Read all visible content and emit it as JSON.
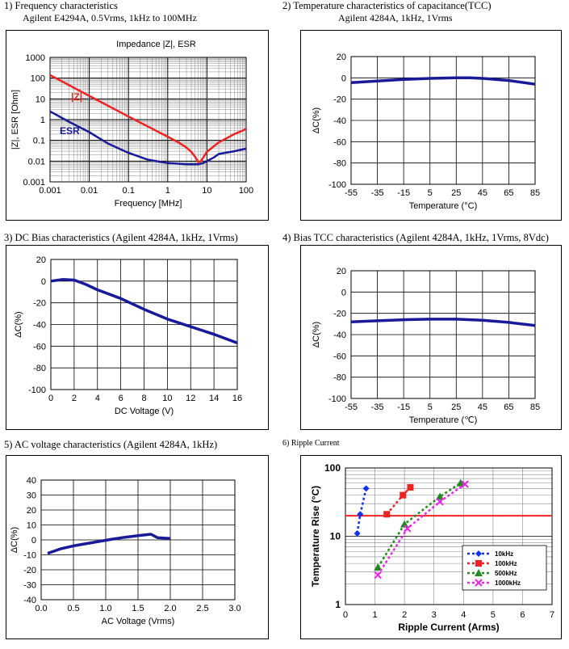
{
  "headers": {
    "p1_title": "1) Frequency characteristics",
    "p1_sub": "Agilent E4294A, 0.5Vrms, 1kHz to 100MHz",
    "p2_title": "2) Temperature characteristics of capacitance(TCC)",
    "p2_sub": "Agilent 4284A, 1kHz, 1Vrms",
    "p3_title": "3) DC Bias characteristics (Agilent 4284A, 1kHz, 1Vrms)",
    "p4_title": "4) Bias TCC characteristics (Agilent 4284A, 1kHz, 1Vrms, 8Vdc)",
    "p5_title": "5) AC voltage characteristics (Agilent 4284A, 1kHz)",
    "p6_title": "6) Ripple Current"
  },
  "colors": {
    "red": "#ee2222",
    "blue": "#1a1a99",
    "axis": "#000000",
    "grid": "#888888",
    "green": "#228822",
    "magenta": "#ee22ee",
    "brightblue": "#1133ee"
  },
  "chart_data": [
    {
      "id": "freq",
      "type": "line",
      "title": "Impedance |Z|,  ESR",
      "xlabel": "Frequency [MHz]",
      "ylabel": "|Z|, ESR [Ohm]",
      "xscale": "log",
      "yscale": "log",
      "xlim": [
        0.001,
        100
      ],
      "ylim": [
        0.001,
        1000
      ],
      "xticks": [
        "0.001",
        "0.01",
        "0.1",
        "1",
        "10",
        "100"
      ],
      "yticks": [
        "0.001",
        "0.01",
        "0.1",
        "1",
        "10",
        "100",
        "1000"
      ],
      "grid": true,
      "series": [
        {
          "name": "|Z|",
          "x": [
            0.001,
            0.01,
            0.1,
            1,
            2,
            3,
            4,
            5,
            6,
            7,
            10,
            20,
            50,
            100
          ],
          "y": [
            140,
            14,
            1.4,
            0.15,
            0.075,
            0.045,
            0.028,
            0.016,
            0.009,
            0.01,
            0.028,
            0.08,
            0.2,
            0.35
          ]
        },
        {
          "name": "ESR",
          "x": [
            0.001,
            0.003,
            0.01,
            0.03,
            0.1,
            0.3,
            1,
            3,
            6,
            8,
            10,
            15,
            20,
            50,
            100
          ],
          "y": [
            2.5,
            0.8,
            0.25,
            0.07,
            0.025,
            0.012,
            0.008,
            0.007,
            0.007,
            0.008,
            0.01,
            0.015,
            0.022,
            0.03,
            0.04
          ]
        }
      ]
    },
    {
      "id": "tcc",
      "type": "line",
      "xlabel": "Temperature (°C)",
      "ylabel": "ΔC(%)",
      "xlim": [
        -55,
        85
      ],
      "ylim": [
        -100,
        20
      ],
      "xticks": [
        "-55",
        "-35",
        "-15",
        "5",
        "25",
        "45",
        "65",
        "85"
      ],
      "yticks": [
        "20",
        "0",
        "-20",
        "-40",
        "-60",
        "-80",
        "-100"
      ],
      "grid": true,
      "series": [
        {
          "x": [
            -55,
            -35,
            -15,
            5,
            25,
            35,
            45,
            65,
            85
          ],
          "y": [
            -4.5,
            -3,
            -1.5,
            -0.5,
            0,
            0,
            -0.5,
            -2.5,
            -6
          ]
        }
      ]
    },
    {
      "id": "dcbias",
      "type": "line",
      "xlabel": "DC Voltage (V)",
      "ylabel": "ΔC(%)",
      "xlim": [
        0,
        16
      ],
      "ylim": [
        -100,
        20
      ],
      "xticks": [
        "0",
        "2",
        "4",
        "6",
        "8",
        "10",
        "12",
        "14",
        "16"
      ],
      "yticks": [
        "20",
        "0",
        "-20",
        "-40",
        "-60",
        "-80",
        "-100"
      ],
      "grid": true,
      "series": [
        {
          "x": [
            0,
            1,
            2,
            3,
            4,
            6,
            8,
            10,
            12,
            14,
            16
          ],
          "y": [
            0,
            1.5,
            1,
            -3,
            -8,
            -16,
            -26,
            -35,
            -42,
            -49,
            -57
          ]
        }
      ]
    },
    {
      "id": "biastcc",
      "type": "line",
      "xlabel": "Temperature (℃)",
      "ylabel": "ΔC(%)",
      "xlim": [
        -55,
        85
      ],
      "ylim": [
        -100,
        20
      ],
      "xticks": [
        "-55",
        "-35",
        "-15",
        "5",
        "25",
        "45",
        "65",
        "85"
      ],
      "yticks": [
        "20",
        "0",
        "-20",
        "-40",
        "-60",
        "-80",
        "-100"
      ],
      "grid": true,
      "series": [
        {
          "x": [
            -55,
            -35,
            -15,
            5,
            25,
            45,
            65,
            85
          ],
          "y": [
            -28,
            -27,
            -26,
            -25.5,
            -25.5,
            -26.5,
            -28.5,
            -31.5
          ]
        }
      ]
    },
    {
      "id": "acv",
      "type": "line",
      "xlabel": "AC Voltage (Vrms)",
      "ylabel": "ΔC(%)",
      "xlim": [
        0,
        3
      ],
      "ylim": [
        -40,
        40
      ],
      "xticks": [
        "0.0",
        "0.5",
        "1.0",
        "1.5",
        "2.0",
        "2.5",
        "3.0"
      ],
      "yticks": [
        "40",
        "30",
        "20",
        "10",
        "0",
        "-10",
        "-20",
        "-30",
        "-40"
      ],
      "grid": true,
      "series": [
        {
          "x": [
            0.1,
            0.2,
            0.3,
            0.5,
            0.7,
            0.9,
            1.1,
            1.3,
            1.5,
            1.6,
            1.7,
            1.8,
            1.9,
            2.0
          ],
          "y": [
            -9,
            -7.5,
            -6,
            -4,
            -2.5,
            -1,
            0.5,
            1.8,
            2.8,
            3.3,
            3.8,
            1.5,
            1.2,
            1
          ]
        }
      ]
    },
    {
      "id": "ripple",
      "type": "scatter",
      "xlabel": "Ripple Current (Arms)",
      "ylabel": "Temperature Rise (°C)",
      "yscale": "log",
      "xlim": [
        0,
        7
      ],
      "ylim": [
        1,
        100
      ],
      "xticks": [
        "0",
        "1",
        "2",
        "3",
        "4",
        "5",
        "6",
        "7"
      ],
      "yticks": [
        "100",
        "10",
        "1"
      ],
      "grid": true,
      "reference_line": 20,
      "legend_position": "bottom-right",
      "series": [
        {
          "name": "10kHz",
          "marker": "diamond",
          "x": [
            0.4,
            0.5,
            0.7
          ],
          "y": [
            11,
            21,
            50
          ]
        },
        {
          "name": "100kHz",
          "marker": "square",
          "x": [
            1.4,
            1.95,
            2.2
          ],
          "y": [
            21,
            40,
            52
          ]
        },
        {
          "name": "500kHz",
          "marker": "triangle",
          "x": [
            1.1,
            2,
            3.2,
            3.9
          ],
          "y": [
            3.5,
            15,
            38,
            60
          ]
        },
        {
          "name": "1000kHz",
          "marker": "x",
          "x": [
            1.1,
            2.1,
            3.2,
            4.05
          ],
          "y": [
            2.7,
            13,
            32,
            58
          ]
        }
      ]
    }
  ]
}
